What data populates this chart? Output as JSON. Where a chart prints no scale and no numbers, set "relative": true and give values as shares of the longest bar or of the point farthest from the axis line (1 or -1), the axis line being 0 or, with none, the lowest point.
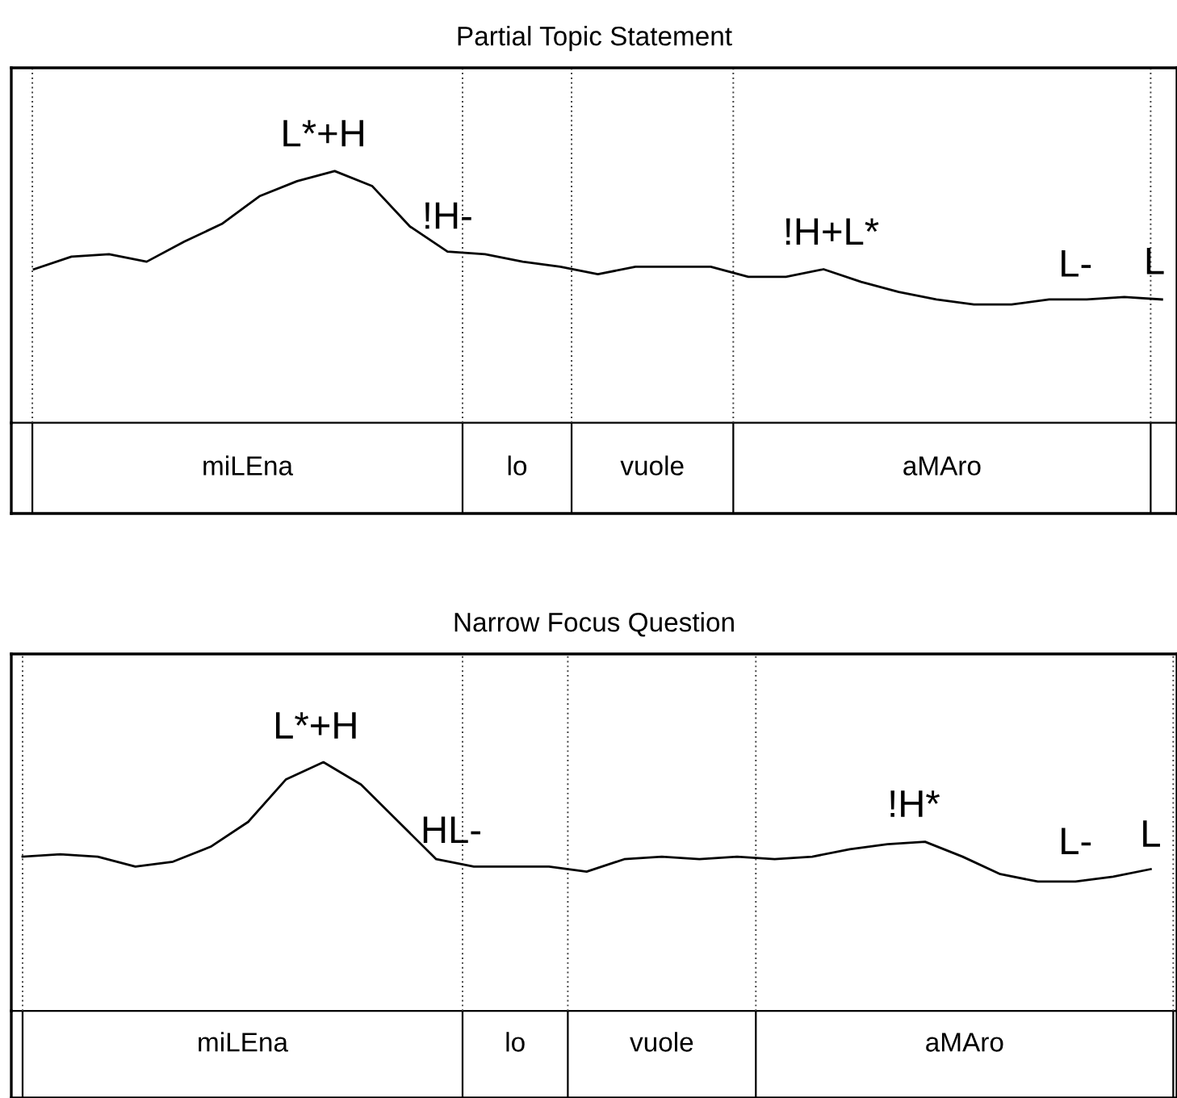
{
  "chart_data": [
    {
      "type": "line",
      "relative": true,
      "title": "Partial Topic Statement",
      "categories": [
        null,
        null,
        null,
        null,
        null,
        null,
        null,
        null,
        null,
        null,
        null,
        null,
        null,
        null,
        null,
        null,
        null,
        null,
        null,
        null,
        null,
        null,
        null,
        null,
        null,
        null,
        null,
        null,
        null,
        null,
        null
      ],
      "series": [
        {
          "color": "#000000",
          "values": [
            0.61,
            0.66,
            0.67,
            0.64,
            0.72,
            0.79,
            0.9,
            0.96,
            1.0,
            0.94,
            0.78,
            0.68,
            0.67,
            0.64,
            0.62,
            0.59,
            0.62,
            0.62,
            0.62,
            0.58,
            0.58,
            0.61,
            0.56,
            0.52,
            0.49,
            0.47,
            0.47,
            0.49,
            0.49,
            0.5,
            0.49
          ]
        }
      ],
      "annotations": [
        "L*+H",
        "!H-",
        "!H+L*",
        "L-",
        "L",
        "miLEna",
        "lo",
        "vuole",
        "aMAro"
      ]
    },
    {
      "type": "line",
      "relative": true,
      "title": "Narrow Focus Question",
      "categories": [
        null,
        null,
        null,
        null,
        null,
        null,
        null,
        null,
        null,
        null,
        null,
        null,
        null,
        null,
        null,
        null,
        null,
        null,
        null,
        null,
        null,
        null,
        null,
        null,
        null,
        null,
        null,
        null,
        null,
        null,
        null
      ],
      "series": [
        {
          "color": "#000000",
          "values": [
            0.62,
            0.63,
            0.62,
            0.58,
            0.6,
            0.66,
            0.76,
            0.93,
            1.0,
            0.91,
            0.76,
            0.61,
            0.58,
            0.58,
            0.58,
            0.56,
            0.61,
            0.62,
            0.61,
            0.62,
            0.61,
            0.62,
            0.65,
            0.67,
            0.68,
            0.62,
            0.55,
            0.52,
            0.52,
            0.54,
            0.57
          ]
        }
      ],
      "annotations": [
        "L*+H",
        "HL-",
        "!H*",
        "L-",
        "L",
        "miLEna",
        "lo",
        "vuole",
        "aMAro"
      ]
    }
  ]
}
